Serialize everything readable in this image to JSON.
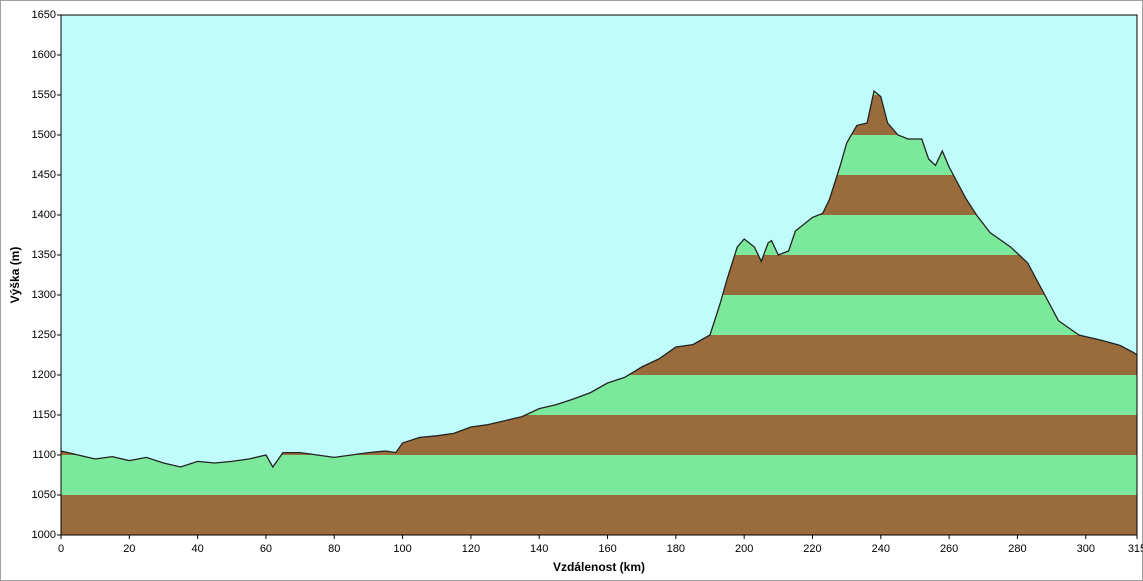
{
  "chart_data": {
    "type": "area",
    "xlabel": "Vzdálenost  (km)",
    "ylabel": "Výška (m)",
    "x": [
      0,
      5,
      10,
      15,
      20,
      25,
      30,
      35,
      40,
      45,
      50,
      55,
      60,
      62,
      65,
      70,
      75,
      80,
      85,
      90,
      95,
      98,
      100,
      105,
      110,
      115,
      120,
      125,
      130,
      135,
      140,
      145,
      150,
      155,
      160,
      165,
      170,
      175,
      180,
      185,
      190,
      193,
      195,
      198,
      200,
      203,
      205,
      207,
      208,
      210,
      213,
      215,
      220,
      223,
      225,
      228,
      230,
      233,
      236,
      238,
      240,
      242,
      245,
      248,
      252,
      254,
      256,
      258,
      260,
      265,
      268,
      272,
      278,
      283,
      288,
      292,
      298,
      305,
      310,
      314,
      315
    ],
    "values": [
      1105,
      1100,
      1095,
      1098,
      1093,
      1097,
      1090,
      1085,
      1092,
      1090,
      1092,
      1095,
      1100,
      1085,
      1103,
      1103,
      1100,
      1097,
      1100,
      1103,
      1105,
      1103,
      1115,
      1122,
      1124,
      1127,
      1135,
      1138,
      1143,
      1148,
      1158,
      1163,
      1170,
      1178,
      1190,
      1197,
      1210,
      1220,
      1235,
      1238,
      1250,
      1290,
      1320,
      1360,
      1370,
      1360,
      1342,
      1365,
      1368,
      1350,
      1355,
      1380,
      1397,
      1402,
      1420,
      1460,
      1490,
      1512,
      1515,
      1555,
      1548,
      1515,
      1500,
      1495,
      1495,
      1470,
      1462,
      1480,
      1460,
      1420,
      1400,
      1378,
      1360,
      1340,
      1300,
      1268,
      1250,
      1243,
      1237,
      1228,
      1225
    ],
    "xlim": [
      0,
      315
    ],
    "ylim": [
      1000,
      1650
    ],
    "xticks": [
      0,
      20,
      40,
      60,
      80,
      100,
      120,
      140,
      160,
      180,
      200,
      220,
      240,
      260,
      280,
      300,
      315
    ],
    "yticks": [
      1000,
      1050,
      1100,
      1150,
      1200,
      1250,
      1300,
      1350,
      1400,
      1450,
      1500,
      1550,
      1600,
      1650
    ],
    "band_colors": [
      "#9a6c3c",
      "#7ce89c"
    ],
    "background": "#bffcfb",
    "line_color": "#222222"
  }
}
